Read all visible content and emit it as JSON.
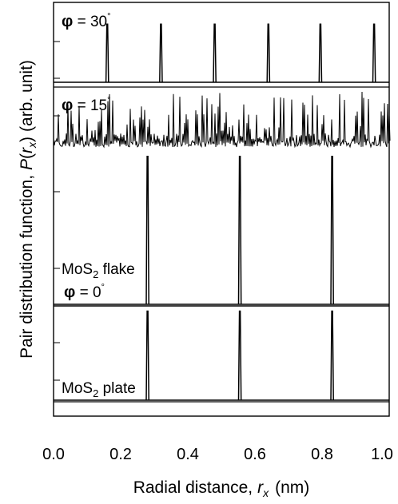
{
  "chart_data": {
    "type": "line",
    "xlabel": "Radial distance, r_x (nm)",
    "xlabel_parts": {
      "prefix": "Radial distance,",
      "var": "r",
      "sub": "x",
      "unit": "(nm)"
    },
    "ylabel": "Pair distribution function, P(r_x) (arb. unit)",
    "ylabel_parts": {
      "prefix": "Pair distribution function,",
      "var": "P",
      "open": "(",
      "rvar": "r",
      "sub": "x",
      "close": ")",
      "unit": "(arb. unit)"
    },
    "xlim": [
      0.0,
      1.0
    ],
    "x_tick_labels": [
      "0.0",
      "0.2",
      "0.4",
      "0.6",
      "0.8",
      "1.0"
    ],
    "x_ticks": [
      0.0,
      0.2,
      0.4,
      0.6,
      0.8,
      1.0
    ],
    "grid": false,
    "panels": [
      {
        "label": "φ = 30°",
        "label_parts": {
          "phi": "φ",
          "eq": " = 30",
          "deg": "°"
        },
        "peaks": [
          0.16,
          0.32,
          0.48,
          0.64,
          0.795,
          0.955
        ],
        "peak_height": 0.75,
        "baseline": 0.0
      },
      {
        "label": "φ = 15°",
        "label_parts": {
          "phi": "φ",
          "eq": " = 15",
          "deg": "°"
        },
        "style": "dense noisy peaks",
        "baseline_level": 0.28,
        "peak_height": 0.9
      },
      {
        "label": "MoS2 flake φ = 0°",
        "label_parts": {
          "name": "MoS",
          "sub": "2",
          "suffix": " flake",
          "phi": "φ",
          "eq": " = 0",
          "deg": "°"
        },
        "peaks": [
          0.28,
          0.555,
          0.83
        ],
        "peak_height": 0.97,
        "baseline": 0.0
      },
      {
        "label": "MoS2 plate",
        "label_parts": {
          "name": "MoS",
          "sub": "2",
          "suffix": " plate"
        },
        "peaks": [
          0.28,
          0.555,
          0.83
        ],
        "peak_height": 0.97,
        "baseline": 0.0
      }
    ]
  }
}
